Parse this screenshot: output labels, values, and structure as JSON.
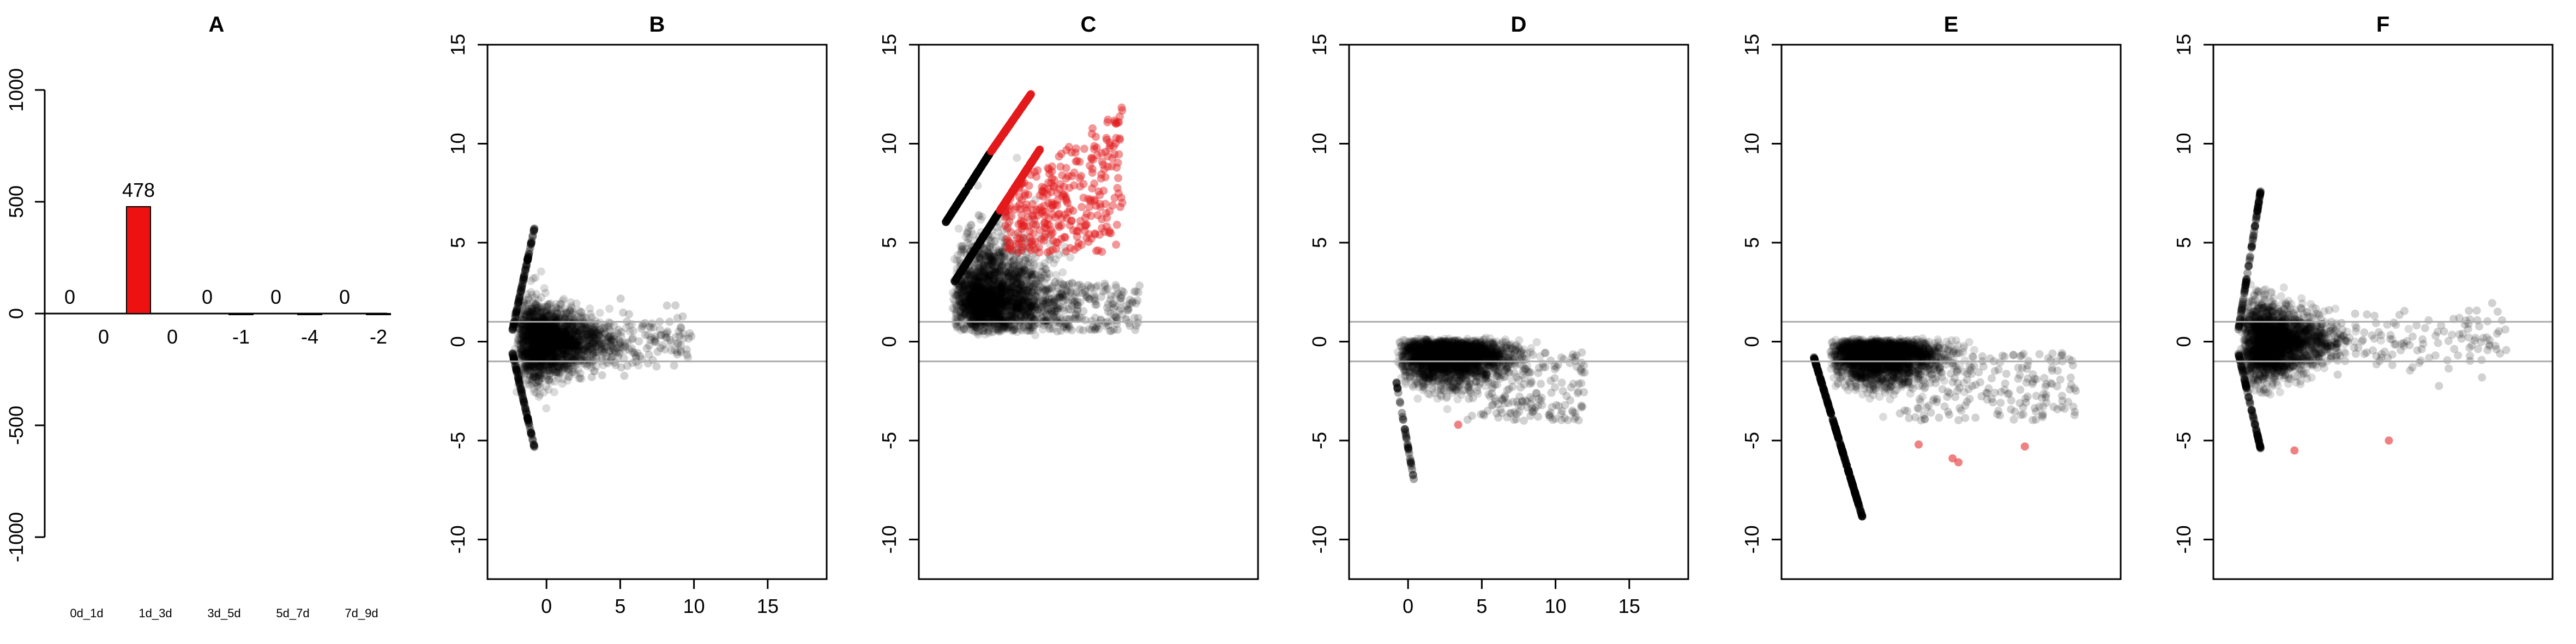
{
  "chart_data": [
    {
      "panel": "A",
      "type": "bar",
      "title": "A",
      "categories": [
        "0d_1d",
        "1d_3d",
        "3d_5d",
        "5d_7d",
        "7d_9d"
      ],
      "up_values": [
        0,
        478,
        0,
        0,
        0
      ],
      "down_values": [
        0,
        0,
        -1,
        -4,
        -2
      ],
      "ylim": [
        -1000,
        1000
      ],
      "yticks": [
        "-1000",
        "-500",
        "0",
        "500",
        "1000"
      ],
      "bar_color": "#ee1111",
      "xlabel": "",
      "ylabel": ""
    },
    {
      "panel": "B",
      "type": "scatter",
      "title": "B",
      "xlim": [
        -4,
        19
      ],
      "ylim": [
        -12,
        15
      ],
      "xticks": [
        "0",
        "5",
        "10",
        "15"
      ],
      "show_xticks": true,
      "yticks": [
        "-10",
        "-5",
        "0",
        "5",
        "10",
        "15"
      ],
      "hlines": [
        1,
        -1
      ],
      "point_color": "#000000",
      "highlight_color": "#e31a1c",
      "highlighted_points": [],
      "xlabel": "",
      "ylabel": ""
    },
    {
      "panel": "C",
      "type": "scatter",
      "title": "C",
      "xlim": [
        -4,
        19
      ],
      "ylim": [
        -12,
        15
      ],
      "xticks": [
        "0",
        "5",
        "10",
        "15"
      ],
      "show_xticks": false,
      "yticks": [
        "-10",
        "-5",
        "0",
        "5",
        "10",
        "15"
      ],
      "hlines": [
        1,
        -1
      ],
      "point_color": "#000000",
      "highlight_color": "#e31a1c",
      "highlighted_points": [],
      "xlabel": "",
      "ylabel": ""
    },
    {
      "panel": "D",
      "type": "scatter",
      "title": "D",
      "xlim": [
        -4,
        19
      ],
      "ylim": [
        -12,
        15
      ],
      "xticks": [
        "0",
        "5",
        "10",
        "15"
      ],
      "show_xticks": true,
      "yticks": [
        "-10",
        "-5",
        "0",
        "5",
        "10",
        "15"
      ],
      "hlines": [
        1,
        -1
      ],
      "point_color": "#000000",
      "highlight_color": "#e31a1c",
      "highlighted_points": [
        [
          3.4,
          -4.2
        ]
      ],
      "xlabel": "",
      "ylabel": ""
    },
    {
      "panel": "E",
      "type": "scatter",
      "title": "E",
      "xlim": [
        -4,
        19
      ],
      "ylim": [
        -12,
        15
      ],
      "xticks": [
        "0",
        "5",
        "10",
        "15"
      ],
      "show_xticks": false,
      "yticks": [
        "-10",
        "-5",
        "0",
        "5",
        "10",
        "15"
      ],
      "hlines": [
        1,
        -1
      ],
      "point_color": "#000000",
      "highlight_color": "#e31a1c",
      "highlighted_points": [
        [
          5.3,
          -5.2
        ],
        [
          7.6,
          -5.9
        ],
        [
          8.0,
          -6.1
        ],
        [
          12.5,
          -5.3
        ]
      ],
      "xlabel": "",
      "ylabel": ""
    },
    {
      "panel": "F",
      "type": "scatter",
      "title": "F",
      "xlim": [
        -4,
        19
      ],
      "ylim": [
        -12,
        15
      ],
      "xticks": [
        "0",
        "5",
        "10",
        "15"
      ],
      "show_xticks": false,
      "yticks": [
        "-10",
        "-5",
        "0",
        "5",
        "10",
        "15"
      ],
      "hlines": [
        1,
        -1
      ],
      "point_color": "#000000",
      "highlight_color": "#e31a1c",
      "highlighted_points": [
        [
          1.5,
          -5.5
        ],
        [
          7.9,
          -5.0
        ]
      ],
      "xlabel": "",
      "ylabel": ""
    }
  ]
}
